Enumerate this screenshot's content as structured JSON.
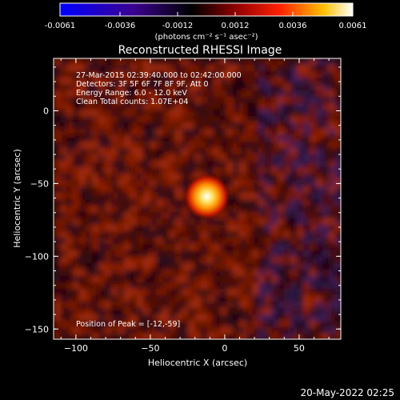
{
  "colorbar": {
    "tick_labels": [
      "-0.0061",
      "-0.0036",
      "-0.0012",
      "0.0012",
      "0.0036",
      "0.0061"
    ],
    "tick_values": [
      -0.0061,
      -0.0036,
      -0.0012,
      0.0012,
      0.0036,
      0.0061
    ],
    "range": [
      -0.0061,
      0.0061
    ],
    "unit_label": "(photons cm⁻² s⁻¹ asec⁻²)",
    "colormap": [
      "#0000ff",
      "#2a0080",
      "#000000",
      "#7a0000",
      "#ff0000",
      "#ffb000",
      "#ffffff"
    ]
  },
  "chart_data": {
    "type": "heatmap",
    "title": "Reconstructed RHESSI Image",
    "xlabel": "Heliocentric X (arcsec)",
    "ylabel": "Heliocentric Y (arcsec)",
    "xlim": [
      -115,
      78
    ],
    "ylim": [
      -157,
      36
    ],
    "x_ticks": [
      -100,
      -50,
      0,
      50
    ],
    "y_ticks": [
      0,
      -50,
      -100,
      -150
    ],
    "x_tick_labels": [
      "−100",
      "−50",
      "0",
      "50"
    ],
    "y_tick_labels": [
      "0",
      "−50",
      "−100",
      "−150"
    ],
    "peak": {
      "x": -12,
      "y": -59,
      "value": 0.0061
    },
    "info": [
      "27-Mar-2015 02:39:40.000 to 02:42:00.000",
      "Detectors: 3F 5F 6F 7F 8F 9F, Att 0",
      "Energy Range: 6.0 - 12.0 keV",
      "Clean     Total counts: 1.07E+04"
    ],
    "peak_label": "Position of Peak = [-12,-59]"
  },
  "footer": {
    "timestamp": "20-May-2022 02:25"
  }
}
